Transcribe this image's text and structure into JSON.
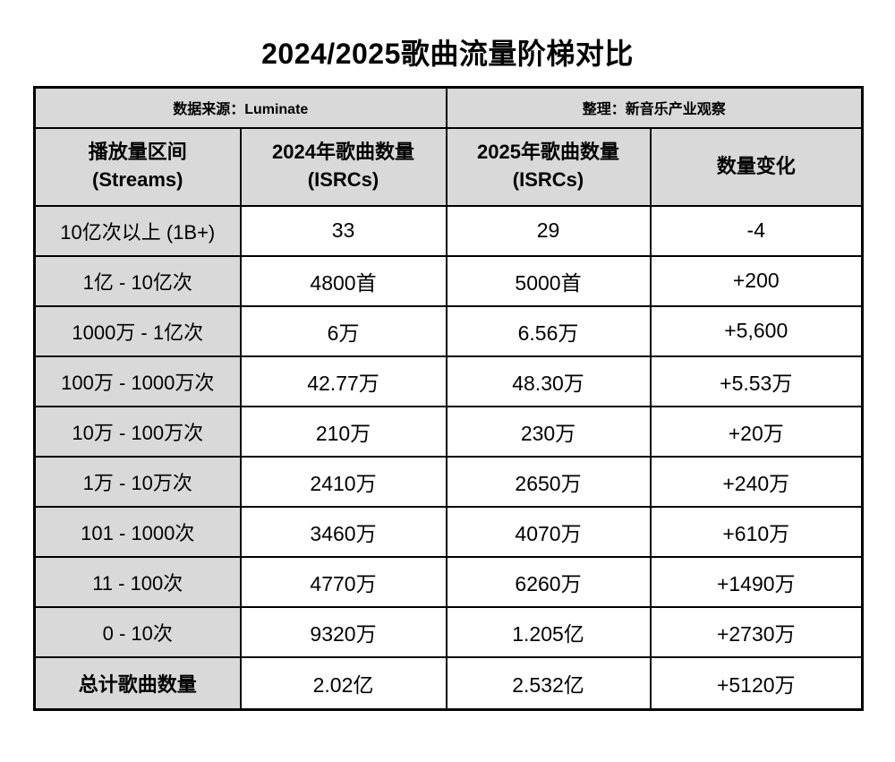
{
  "title": "2024/2025歌曲流量阶梯对比",
  "meta": {
    "source": "数据来源：Luminate",
    "curator": "整理：新音乐产业观察"
  },
  "table": {
    "headers": [
      {
        "line1": "播放量区间",
        "line2": "(Streams)"
      },
      {
        "line1": "2024年歌曲数量",
        "line2": "(ISRCs)"
      },
      {
        "line1": "2025年歌曲数量",
        "line2": "(ISRCs)"
      },
      {
        "line1": "数量变化"
      }
    ],
    "rows": [
      {
        "tier": "10亿次以上 (1B+)",
        "y2024": "33",
        "y2025": "29",
        "change": "-4"
      },
      {
        "tier": "1亿 - 10亿次",
        "y2024": "4800首",
        "y2025": "5000首",
        "change": "+200"
      },
      {
        "tier": "1000万 - 1亿次",
        "y2024": "6万",
        "y2025": "6.56万",
        "change": "+5,600"
      },
      {
        "tier": "100万 - 1000万次",
        "y2024": "42.77万",
        "y2025": "48.30万",
        "change": "+5.53万"
      },
      {
        "tier": "10万 - 100万次",
        "y2024": "210万",
        "y2025": "230万",
        "change": "+20万"
      },
      {
        "tier": "1万 - 10万次",
        "y2024": "2410万",
        "y2025": "2650万",
        "change": "+240万"
      },
      {
        "tier": "101 - 1000次",
        "y2024": "3460万",
        "y2025": "4070万",
        "change": "+610万"
      },
      {
        "tier": "11 - 100次",
        "y2024": "4770万",
        "y2025": "6260万",
        "change": "+1490万"
      },
      {
        "tier": "0 - 10次",
        "y2024": "9320万",
        "y2025": "1.205亿",
        "change": "+2730万"
      },
      {
        "tier": "总计歌曲数量",
        "y2024": "2.02亿",
        "y2025": "2.532亿",
        "change": "+5120万",
        "is_total": true
      }
    ]
  },
  "colors": {
    "header_bg": "#d9d9d9",
    "cell_bg": "#ffffff",
    "border": "#000000",
    "text": "#000000"
  },
  "chart_data": {
    "type": "table",
    "title": "2024/2025歌曲流量阶梯对比",
    "source": "数据来源：Luminate",
    "curator": "整理：新音乐产业观察",
    "columns": [
      "播放量区间 (Streams)",
      "2024年歌曲数量 (ISRCs)",
      "2025年歌曲数量 (ISRCs)",
      "数量变化"
    ],
    "rows": [
      [
        "10亿次以上 (1B+)",
        "33",
        "29",
        "-4"
      ],
      [
        "1亿 - 10亿次",
        "4800首",
        "5000首",
        "+200"
      ],
      [
        "1000万 - 1亿次",
        "6万",
        "6.56万",
        "+5,600"
      ],
      [
        "100万 - 1000万次",
        "42.77万",
        "48.30万",
        "+5.53万"
      ],
      [
        "10万 - 100万次",
        "210万",
        "230万",
        "+20万"
      ],
      [
        "1万 - 10万次",
        "2410万",
        "2650万",
        "+240万"
      ],
      [
        "101 - 1000次",
        "3460万",
        "4070万",
        "+610万"
      ],
      [
        "11 - 100次",
        "4770万",
        "6260万",
        "+1490万"
      ],
      [
        "0 - 10次",
        "9320万",
        "1.205亿",
        "+2730万"
      ],
      [
        "总计歌曲数量",
        "2.02亿",
        "2.532亿",
        "+5120万"
      ]
    ]
  }
}
